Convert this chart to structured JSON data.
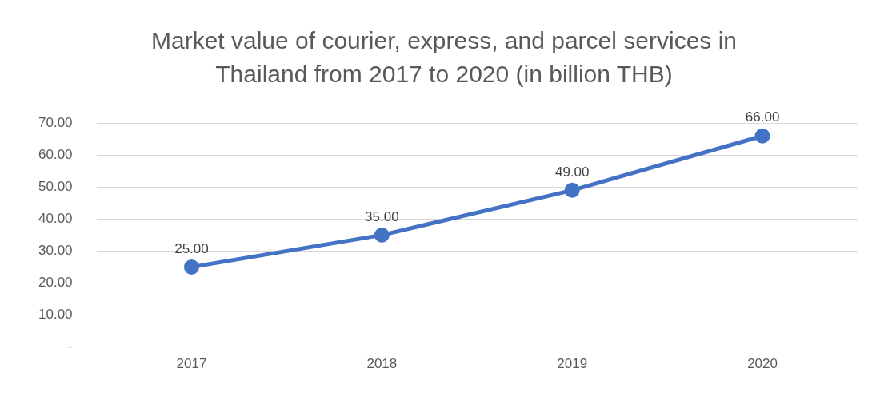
{
  "chart_data": {
    "type": "line",
    "title": "Market value of courier, express, and parcel services in Thailand from 2017 to 2020 (in billion THB)",
    "categories": [
      "2017",
      "2018",
      "2019",
      "2020"
    ],
    "series": [
      {
        "color": "#4472c4",
        "values": [
          25,
          35,
          49,
          66
        ],
        "value_labels": [
          "25.00",
          "35.00",
          "49.00",
          "66.00"
        ]
      }
    ],
    "ylim": [
      0,
      70
    ],
    "yticks": [
      {
        "value": 0,
        "label": "-"
      },
      {
        "value": 10,
        "label": "10.00"
      },
      {
        "value": 20,
        "label": "20.00"
      },
      {
        "value": 30,
        "label": "30.00"
      },
      {
        "value": 40,
        "label": "40.00"
      },
      {
        "value": 50,
        "label": "50.00"
      },
      {
        "value": 60,
        "label": "60.00"
      },
      {
        "value": 70,
        "label": "70.00"
      }
    ],
    "grid": "y",
    "legend": false,
    "marker": "circle",
    "line_style": "solid"
  }
}
